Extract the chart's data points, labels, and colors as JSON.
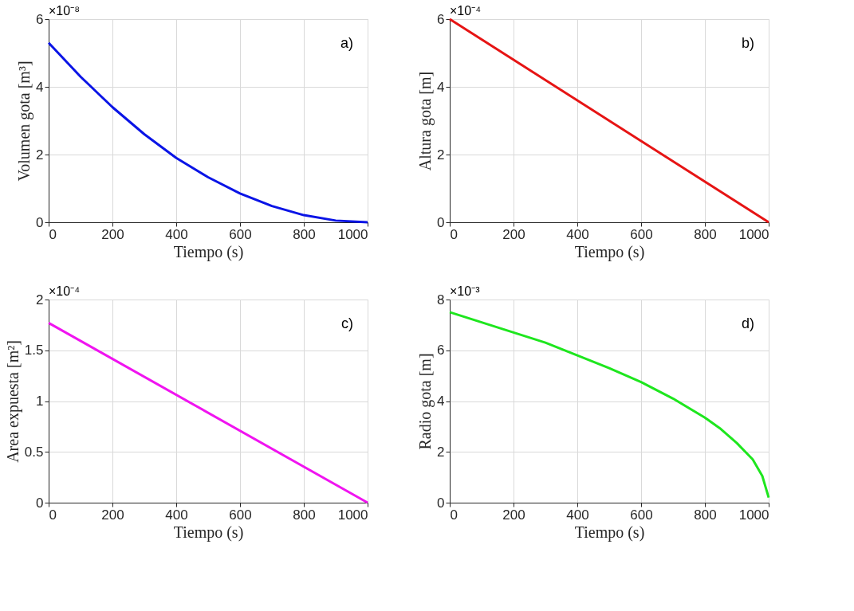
{
  "chart_data": [
    {
      "type": "line",
      "xlabel": "Tiempo (s)",
      "ylabel": "Volumen gota [m³]",
      "annotations": [
        "×10⁻⁸",
        "a)"
      ],
      "x": [
        0,
        100,
        200,
        300,
        400,
        500,
        600,
        700,
        800,
        900,
        1000
      ],
      "series": [
        {
          "color": "#0a14e6",
          "values": [
            5.3,
            4.3,
            3.4,
            2.6,
            1.9,
            1.33,
            0.85,
            0.48,
            0.21,
            0.05,
            0
          ]
        }
      ],
      "xlim": [
        0,
        1000
      ],
      "xticks": [
        0,
        200,
        400,
        600,
        800,
        1000
      ],
      "ylim": [
        0,
        6
      ],
      "yticks": [
        0,
        2,
        4,
        6
      ],
      "grid": true
    },
    {
      "type": "line",
      "xlabel": "Tiempo (s)",
      "ylabel": "Altura gota [m]",
      "annotations": [
        "×10⁻⁴",
        "b)"
      ],
      "x": [
        0,
        1000
      ],
      "series": [
        {
          "color": "#e61414",
          "values": [
            6,
            0
          ]
        }
      ],
      "xlim": [
        0,
        1000
      ],
      "xticks": [
        0,
        200,
        400,
        600,
        800,
        1000
      ],
      "ylim": [
        0,
        6
      ],
      "yticks": [
        0,
        2,
        4,
        6
      ],
      "grid": true
    },
    {
      "type": "line",
      "xlabel": "Tiempo (s)",
      "ylabel": "Area expuesta [m²]",
      "annotations": [
        "×10⁻⁴",
        "c)"
      ],
      "x": [
        0,
        1000
      ],
      "series": [
        {
          "color": "#f014f0",
          "values": [
            1.77,
            0
          ]
        }
      ],
      "xlim": [
        0,
        1000
      ],
      "xticks": [
        0,
        200,
        400,
        600,
        800,
        1000
      ],
      "ylim": [
        0,
        2
      ],
      "yticks": [
        0,
        0.5,
        1,
        1.5,
        2
      ],
      "grid": true
    },
    {
      "type": "line",
      "xlabel": "Tiempo (s)",
      "ylabel": "Radio gota [m]",
      "annotations": [
        "×10⁻³",
        "d)"
      ],
      "x": [
        0,
        100,
        200,
        300,
        400,
        500,
        600,
        700,
        800,
        850,
        900,
        950,
        980,
        1000
      ],
      "series": [
        {
          "color": "#1ee61e",
          "values": [
            7.5,
            7.1,
            6.7,
            6.3,
            5.8,
            5.3,
            4.75,
            4.1,
            3.35,
            2.9,
            2.35,
            1.7,
            1.05,
            0.2
          ]
        }
      ],
      "xlim": [
        0,
        1000
      ],
      "xticks": [
        0,
        200,
        400,
        600,
        800,
        1000
      ],
      "ylim": [
        0,
        8
      ],
      "yticks": [
        0,
        2,
        4,
        6,
        8
      ],
      "grid": true
    }
  ]
}
